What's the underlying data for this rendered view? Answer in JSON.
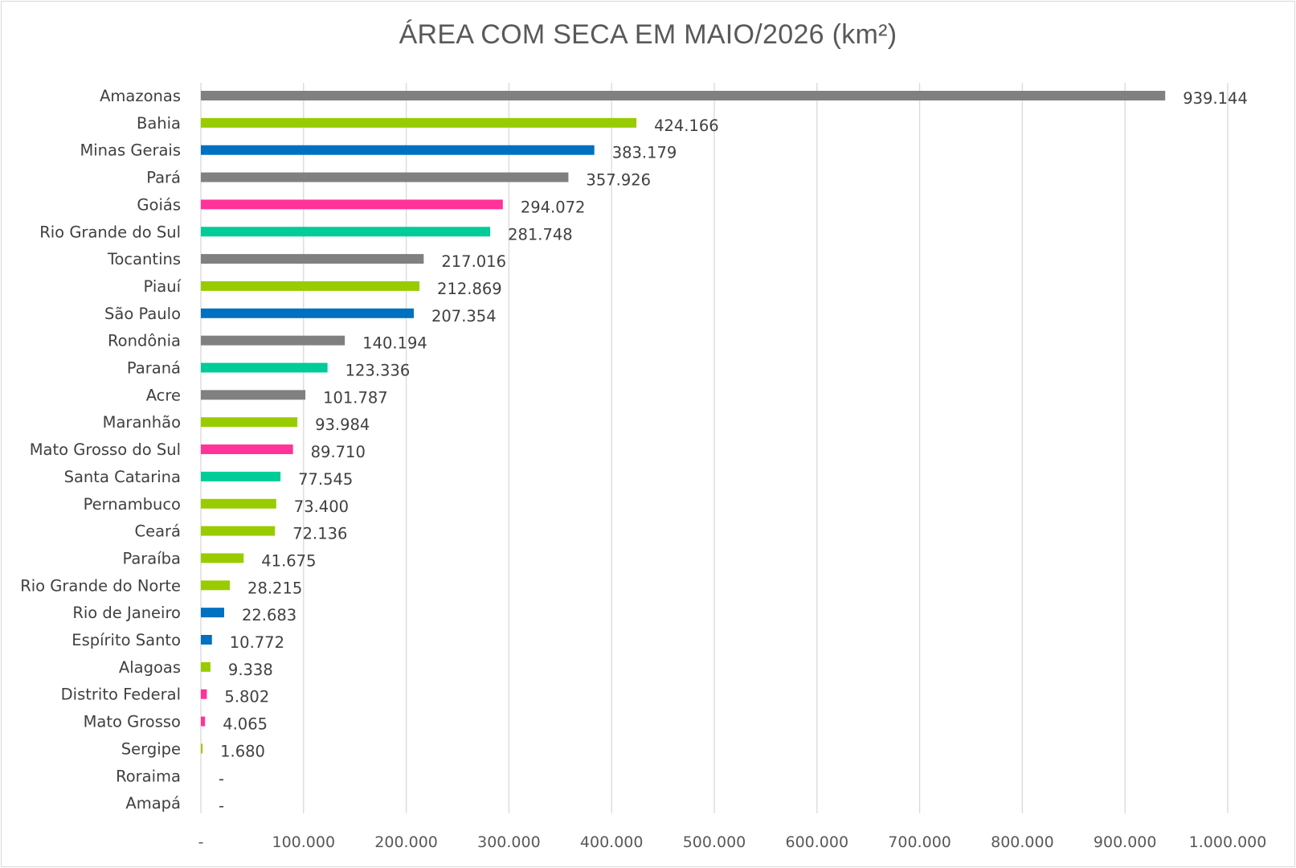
{
  "chart_data": {
    "type": "bar",
    "orientation": "horizontal",
    "title": "ÁREA COM SECA EM MAIO/2026 (km²)",
    "xlabel": "",
    "ylabel": "",
    "xlim": [
      0,
      1000000
    ],
    "grid": "vertical",
    "legend": "none",
    "x_ticks": [
      0,
      100000,
      200000,
      300000,
      400000,
      500000,
      600000,
      700000,
      800000,
      900000,
      1000000
    ],
    "x_tick_labels": [
      "-",
      "100.000",
      "200.000",
      "300.000",
      "400.000",
      "500.000",
      "600.000",
      "700.000",
      "800.000",
      "900.000",
      "1.000.000"
    ],
    "colors": {
      "gray": "#808080",
      "lime": "#99cc00",
      "blue": "#0070c0",
      "pink": "#ff3399",
      "teal": "#00cc99",
      "grid": "#d9d9d9"
    },
    "bars": [
      {
        "category": "Amazonas",
        "value": 939144,
        "label": "939.144",
        "color": "gray"
      },
      {
        "category": "Bahia",
        "value": 424166,
        "label": "424.166",
        "color": "lime"
      },
      {
        "category": "Minas Gerais",
        "value": 383179,
        "label": "383.179",
        "color": "blue"
      },
      {
        "category": "Pará",
        "value": 357926,
        "label": "357.926",
        "color": "gray"
      },
      {
        "category": "Goiás",
        "value": 294072,
        "label": "294.072",
        "color": "pink"
      },
      {
        "category": "Rio Grande do Sul",
        "value": 281748,
        "label": "281.748",
        "color": "teal"
      },
      {
        "category": "Tocantins",
        "value": 217016,
        "label": "217.016",
        "color": "gray"
      },
      {
        "category": "Piauí",
        "value": 212869,
        "label": "212.869",
        "color": "lime"
      },
      {
        "category": "São Paulo",
        "value": 207354,
        "label": "207.354",
        "color": "blue"
      },
      {
        "category": "Rondônia",
        "value": 140194,
        "label": "140.194",
        "color": "gray"
      },
      {
        "category": "Paraná",
        "value": 123336,
        "label": "123.336",
        "color": "teal"
      },
      {
        "category": "Acre",
        "value": 101787,
        "label": "101.787",
        "color": "gray"
      },
      {
        "category": "Maranhão",
        "value": 93984,
        "label": "93.984",
        "color": "lime"
      },
      {
        "category": "Mato Grosso do Sul",
        "value": 89710,
        "label": "89.710",
        "color": "pink"
      },
      {
        "category": "Santa Catarina",
        "value": 77545,
        "label": "77.545",
        "color": "teal"
      },
      {
        "category": "Pernambuco",
        "value": 73400,
        "label": "73.400",
        "color": "lime"
      },
      {
        "category": "Ceará",
        "value": 72136,
        "label": "72.136",
        "color": "lime"
      },
      {
        "category": "Paraíba",
        "value": 41675,
        "label": "41.675",
        "color": "lime"
      },
      {
        "category": "Rio Grande do Norte",
        "value": 28215,
        "label": "28.215",
        "color": "lime"
      },
      {
        "category": "Rio de Janeiro",
        "value": 22683,
        "label": "22.683",
        "color": "blue"
      },
      {
        "category": "Espírito Santo",
        "value": 10772,
        "label": "10.772",
        "color": "blue"
      },
      {
        "category": "Alagoas",
        "value": 9338,
        "label": "9.338",
        "color": "lime"
      },
      {
        "category": "Distrito Federal",
        "value": 5802,
        "label": "5.802",
        "color": "pink"
      },
      {
        "category": "Mato Grosso",
        "value": 4065,
        "label": "4.065",
        "color": "pink"
      },
      {
        "category": "Sergipe",
        "value": 1680,
        "label": "1.680",
        "color": "lime"
      },
      {
        "category": "Roraima",
        "value": 0,
        "label": "-",
        "color": "gray"
      },
      {
        "category": "Amapá",
        "value": 0,
        "label": "-",
        "color": "lime"
      }
    ]
  }
}
